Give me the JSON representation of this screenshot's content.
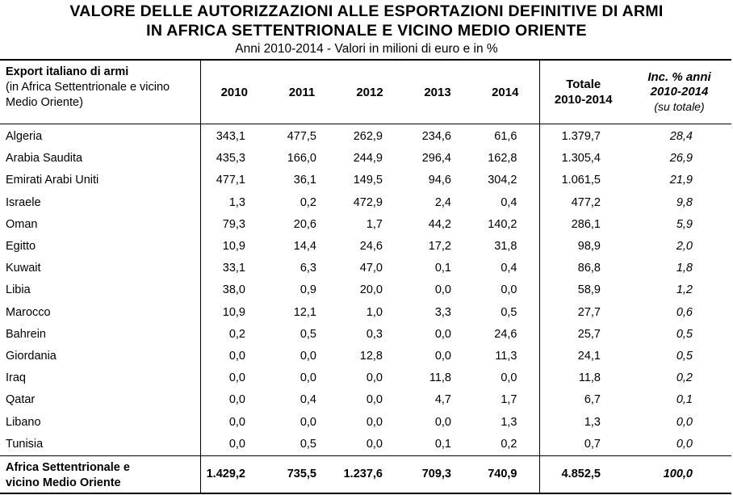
{
  "title_line1": "VALORE DELLE AUTORIZZAZIONI ALLE ESPORTAZIONI DEFINITIVE DI ARMI",
  "title_line2": "IN AFRICA SETTENTRIONALE E VICINO MEDIO ORIENTE",
  "subtitle": "Anni 2010-2014 - Valori in milioni di euro e in %",
  "header": {
    "name_main": "Export italiano di armi",
    "name_sub": "(in Africa Settentrionale e vicino Medio Oriente)",
    "years": [
      "2010",
      "2011",
      "2012",
      "2013",
      "2014"
    ],
    "total_line1": "Totale",
    "total_line2": "2010-2014",
    "inc_line1": "Inc. % anni",
    "inc_line2": "2010-2014",
    "inc_line3": "(su totale)"
  },
  "rows": [
    {
      "country": "Algeria",
      "values": [
        "343,1",
        "477,5",
        "262,9",
        "234,6",
        "61,6"
      ],
      "total": "1.379,7",
      "inc": "28,4"
    },
    {
      "country": "Arabia Saudita",
      "values": [
        "435,3",
        "166,0",
        "244,9",
        "296,4",
        "162,8"
      ],
      "total": "1.305,4",
      "inc": "26,9"
    },
    {
      "country": "Emirati Arabi Uniti",
      "values": [
        "477,1",
        "36,1",
        "149,5",
        "94,6",
        "304,2"
      ],
      "total": "1.061,5",
      "inc": "21,9"
    },
    {
      "country": "Israele",
      "values": [
        "1,3",
        "0,2",
        "472,9",
        "2,4",
        "0,4"
      ],
      "total": "477,2",
      "inc": "9,8"
    },
    {
      "country": "Oman",
      "values": [
        "79,3",
        "20,6",
        "1,7",
        "44,2",
        "140,2"
      ],
      "total": "286,1",
      "inc": "5,9"
    },
    {
      "country": "Egitto",
      "values": [
        "10,9",
        "14,4",
        "24,6",
        "17,2",
        "31,8"
      ],
      "total": "98,9",
      "inc": "2,0"
    },
    {
      "country": "Kuwait",
      "values": [
        "33,1",
        "6,3",
        "47,0",
        "0,1",
        "0,4"
      ],
      "total": "86,8",
      "inc": "1,8"
    },
    {
      "country": "Libia",
      "values": [
        "38,0",
        "0,9",
        "20,0",
        "0,0",
        "0,0"
      ],
      "total": "58,9",
      "inc": "1,2"
    },
    {
      "country": "Marocco",
      "values": [
        "10,9",
        "12,1",
        "1,0",
        "3,3",
        "0,5"
      ],
      "total": "27,7",
      "inc": "0,6"
    },
    {
      "country": "Bahrein",
      "values": [
        "0,2",
        "0,5",
        "0,3",
        "0,0",
        "24,6"
      ],
      "total": "25,7",
      "inc": "0,5"
    },
    {
      "country": "Giordania",
      "values": [
        "0,0",
        "0,0",
        "12,8",
        "0,0",
        "11,3"
      ],
      "total": "24,1",
      "inc": "0,5"
    },
    {
      "country": "Iraq",
      "values": [
        "0,0",
        "0,0",
        "0,0",
        "11,8",
        "0,0"
      ],
      "total": "11,8",
      "inc": "0,2"
    },
    {
      "country": "Qatar",
      "values": [
        "0,0",
        "0,4",
        "0,0",
        "4,7",
        "1,7"
      ],
      "total": "6,7",
      "inc": "0,1"
    },
    {
      "country": "Libano",
      "values": [
        "0,0",
        "0,0",
        "0,0",
        "0,0",
        "1,3"
      ],
      "total": "1,3",
      "inc": "0,0"
    },
    {
      "country": "Tunisia",
      "values": [
        "0,0",
        "0,5",
        "0,0",
        "0,1",
        "0,2"
      ],
      "total": "0,7",
      "inc": "0,0"
    }
  ],
  "footer": {
    "label_line1": "Africa Settentrionale e",
    "label_line2": "vicino Medio Oriente",
    "values": [
      "1.429,2",
      "735,5",
      "1.237,6",
      "709,3",
      "740,9"
    ],
    "total": "4.852,5",
    "inc": "100,0"
  }
}
